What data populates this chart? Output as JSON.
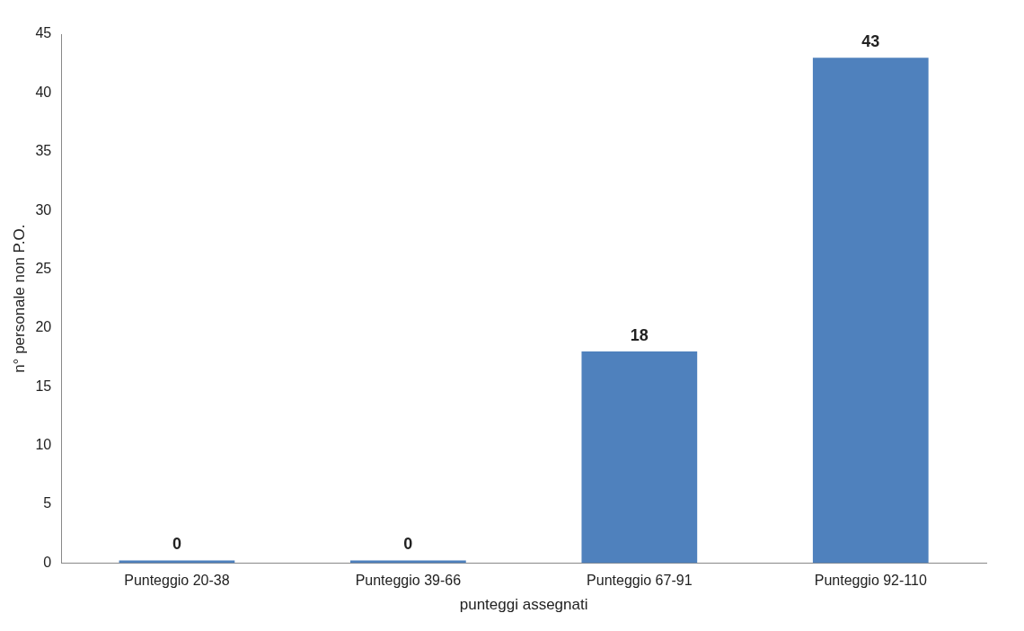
{
  "chart_data": {
    "type": "bar",
    "categories": [
      "Punteggio 20-38",
      "Punteggio 39-66",
      "Punteggio 67-91",
      "Punteggio 92-110"
    ],
    "values": [
      0,
      0,
      18,
      43
    ],
    "color": "#4f81bd",
    "xlabel": "punteggi assegnati",
    "ylabel": "n° personale non P.O.",
    "ylim": [
      0,
      45
    ],
    "yticks": [
      0,
      5,
      10,
      15,
      20,
      25,
      30,
      35,
      40,
      45
    ],
    "data_labels": true,
    "grid": false,
    "legend": false
  }
}
